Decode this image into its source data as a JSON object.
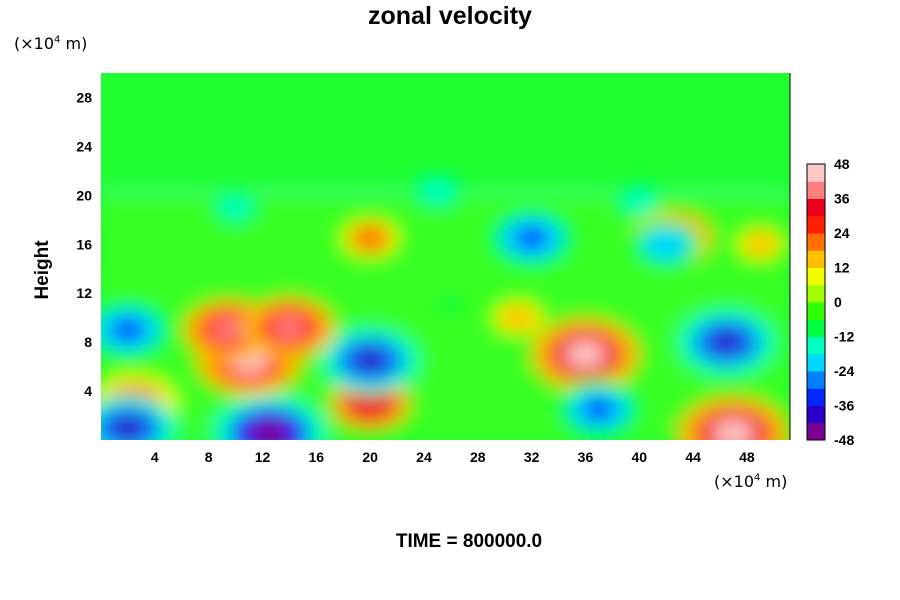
{
  "chart_data": {
    "type": "heatmap",
    "title": "zonal velocity",
    "ylabel": "Height",
    "xlabel": "",
    "x_unit": {
      "base": "(×10",
      "exp": "4",
      "tail": " m)"
    },
    "y_unit": {
      "base": "(×10",
      "exp": "4",
      "tail": " m)"
    },
    "x_ticks": [
      4,
      8,
      12,
      16,
      20,
      24,
      28,
      32,
      36,
      40,
      44,
      48
    ],
    "y_ticks": [
      4,
      8,
      12,
      16,
      20,
      24,
      28
    ],
    "xlim": [
      0,
      51.2
    ],
    "ylim": [
      0,
      30
    ],
    "colorbar": {
      "ticks": [
        48,
        36,
        24,
        12,
        0,
        -12,
        -24,
        -36,
        -48
      ],
      "range": [
        -48,
        48
      ],
      "colors": [
        "#7a0096",
        "#2a00c8",
        "#0028ff",
        "#0080ff",
        "#00d8ff",
        "#00ffc0",
        "#00ff40",
        "#30ff00",
        "#a0ff00",
        "#f0ff00",
        "#ffc000",
        "#ff7000",
        "#ff2000",
        "#f00020",
        "#ff8080",
        "#ffc8c8"
      ]
    },
    "field_features": [
      {
        "x": 11,
        "y": 6.5,
        "value": 44
      },
      {
        "x": 9.5,
        "y": 9,
        "value": 36
      },
      {
        "x": 14,
        "y": 9.2,
        "value": 36
      },
      {
        "x": 2.5,
        "y": 3,
        "value": 34
      },
      {
        "x": 20,
        "y": 3,
        "value": 30
      },
      {
        "x": 36,
        "y": 7,
        "value": 46
      },
      {
        "x": 47,
        "y": 0.5,
        "value": 48
      },
      {
        "x": 42.5,
        "y": 16.5,
        "value": 30
      },
      {
        "x": 2,
        "y": 1.0,
        "value": -40
      },
      {
        "x": 12.5,
        "y": 0.5,
        "value": -50
      },
      {
        "x": 20,
        "y": 6.5,
        "value": -40
      },
      {
        "x": 46.5,
        "y": 8,
        "value": -40
      },
      {
        "x": 2,
        "y": 9,
        "value": -36
      },
      {
        "x": 32,
        "y": 16.5,
        "value": -36
      },
      {
        "x": 37,
        "y": 2.5,
        "value": -34
      },
      {
        "x": 42,
        "y": 16,
        "value": -24
      },
      {
        "x": 49,
        "y": 16,
        "value": 12
      },
      {
        "x": 20,
        "y": 16.5,
        "value": 18
      },
      {
        "x": 31,
        "y": 10,
        "value": 14
      },
      {
        "x": 26,
        "y": 11,
        "value": -8
      },
      {
        "x": 10,
        "y": 19,
        "value": -14
      },
      {
        "x": 40,
        "y": 19.5,
        "value": -14
      },
      {
        "x": 25,
        "y": 20.3,
        "value": -16
      }
    ]
  },
  "footer": {
    "time_label": "TIME = 800000.0"
  }
}
